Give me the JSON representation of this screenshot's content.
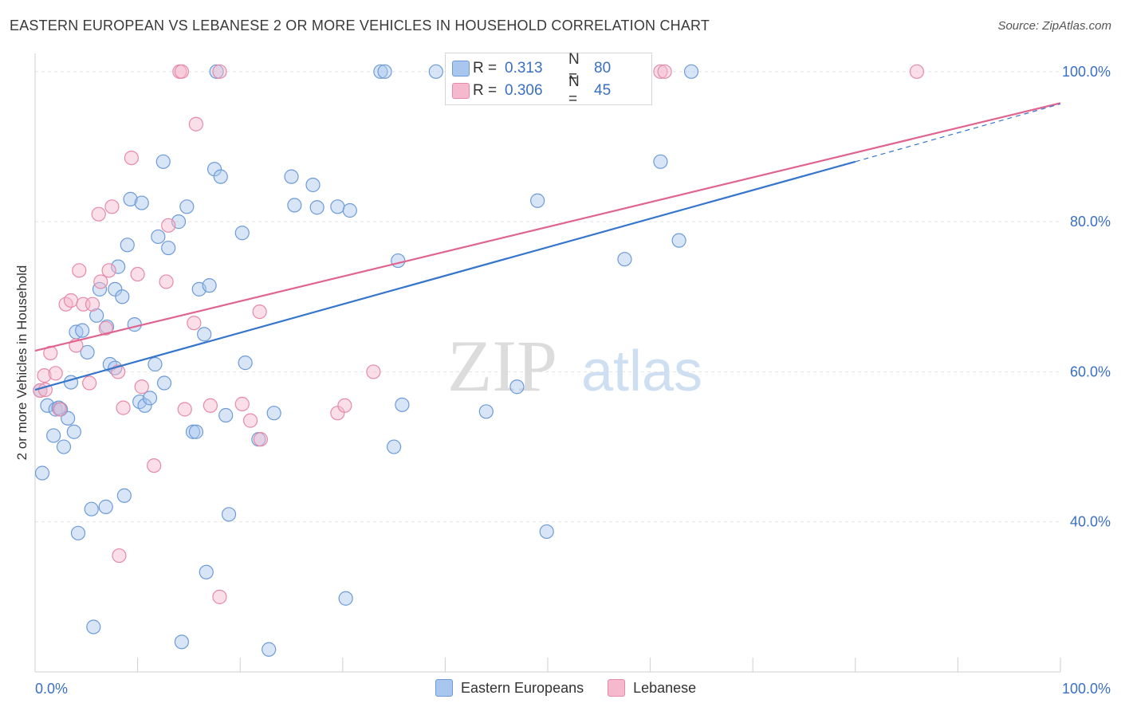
{
  "title": "EASTERN EUROPEAN VS LEBANESE 2 OR MORE VEHICLES IN HOUSEHOLD CORRELATION CHART",
  "source": "Source: ZipAtlas.com",
  "colors": {
    "blue_fill": "#a9c6ee",
    "blue_stroke": "#6d9bd8",
    "blue_line": "#3575cc",
    "pink_fill": "#f5b8cc",
    "pink_stroke": "#e68aa8",
    "pink_line": "#e0648f",
    "tick_text": "#3a6fc4",
    "grid": "#e3e3e3"
  },
  "legend_top": {
    "rows": [
      {
        "r_label": "R =",
        "r_value": "0.313",
        "n_label": "N =",
        "n_value": "80"
      },
      {
        "r_label": "R =",
        "r_value": "0.306",
        "n_label": "N =",
        "n_value": "45"
      }
    ]
  },
  "legend_bottom": {
    "items": [
      "Eastern Europeans",
      "Lebanese"
    ]
  },
  "watermark": {
    "part1": "ZIP",
    "part2": "atlas"
  },
  "chart_data": {
    "type": "scatter",
    "title": "EASTERN EUROPEAN VS LEBANESE 2 OR MORE VEHICLES IN HOUSEHOLD CORRELATION CHART",
    "xlabel": "",
    "ylabel": "2 or more Vehicles in Household",
    "xlim": [
      0,
      100
    ],
    "ylim": [
      20,
      102
    ],
    "x_tick_labels": [
      "0.0%",
      "100.0%"
    ],
    "y_ticks": [
      40,
      60,
      80,
      100
    ],
    "y_tick_labels": [
      "40.0%",
      "60.0%",
      "80.0%",
      "100.0%"
    ],
    "grid": true,
    "series": [
      {
        "name": "Eastern Europeans",
        "r": 0.313,
        "n": 80,
        "trend": {
          "x0": 0,
          "y0": 57.6,
          "x1": 80,
          "y1": 88.0,
          "dash_to_x": 100,
          "dash_to_y": 95.7
        },
        "points": [
          [
            0.5,
            57.5
          ],
          [
            0.7,
            46.5
          ],
          [
            1.2,
            55.5
          ],
          [
            1.8,
            51.5
          ],
          [
            2.0,
            55.0
          ],
          [
            2.3,
            55.2
          ],
          [
            2.5,
            55.0
          ],
          [
            2.8,
            50.0
          ],
          [
            3.2,
            53.8
          ],
          [
            3.5,
            58.6
          ],
          [
            3.8,
            52.0
          ],
          [
            4.0,
            65.3
          ],
          [
            4.2,
            38.5
          ],
          [
            4.6,
            65.5
          ],
          [
            5.1,
            62.6
          ],
          [
            5.5,
            41.7
          ],
          [
            5.7,
            26.0
          ],
          [
            6.0,
            67.5
          ],
          [
            6.3,
            71.0
          ],
          [
            6.9,
            42.0
          ],
          [
            7.0,
            66.0
          ],
          [
            7.3,
            61.0
          ],
          [
            7.8,
            60.5
          ],
          [
            7.8,
            71.0
          ],
          [
            8.1,
            74.0
          ],
          [
            8.5,
            70.0
          ],
          [
            8.7,
            43.5
          ],
          [
            9.0,
            76.9
          ],
          [
            9.3,
            83.0
          ],
          [
            9.7,
            66.3
          ],
          [
            10.2,
            56.0
          ],
          [
            10.4,
            82.5
          ],
          [
            10.7,
            55.5
          ],
          [
            11.2,
            56.5
          ],
          [
            11.7,
            61.0
          ],
          [
            12.0,
            78.0
          ],
          [
            12.5,
            88.0
          ],
          [
            12.6,
            58.5
          ],
          [
            13.0,
            76.5
          ],
          [
            14.0,
            80.0
          ],
          [
            14.3,
            24.0
          ],
          [
            14.8,
            82.0
          ],
          [
            15.4,
            52.0
          ],
          [
            15.7,
            52.0
          ],
          [
            16.0,
            71.0
          ],
          [
            16.5,
            65.0
          ],
          [
            16.7,
            33.3
          ],
          [
            17.0,
            71.5
          ],
          [
            17.5,
            87.0
          ],
          [
            17.7,
            100.0
          ],
          [
            18.1,
            86.0
          ],
          [
            18.6,
            54.2
          ],
          [
            18.9,
            41.0
          ],
          [
            20.2,
            78.5
          ],
          [
            20.5,
            61.2
          ],
          [
            21.8,
            51.0
          ],
          [
            22.8,
            23.0
          ],
          [
            23.3,
            54.5
          ],
          [
            25.0,
            86.0
          ],
          [
            25.3,
            82.2
          ],
          [
            27.1,
            84.9
          ],
          [
            27.5,
            81.9
          ],
          [
            29.5,
            82.0
          ],
          [
            30.3,
            29.8
          ],
          [
            30.7,
            81.5
          ],
          [
            33.7,
            100.0
          ],
          [
            34.1,
            100.0
          ],
          [
            35.0,
            50.0
          ],
          [
            35.4,
            74.8
          ],
          [
            35.8,
            55.6
          ],
          [
            39.1,
            100.0
          ],
          [
            44.0,
            54.7
          ],
          [
            47.0,
            58.0
          ],
          [
            49.0,
            82.8
          ],
          [
            49.9,
            38.7
          ],
          [
            57.0,
            100.0
          ],
          [
            57.5,
            75.0
          ],
          [
            61.0,
            88.0
          ],
          [
            62.8,
            77.5
          ],
          [
            64.0,
            100.0
          ]
        ]
      },
      {
        "name": "Lebanese",
        "r": 0.306,
        "n": 45,
        "trend": {
          "x0": 0,
          "y0": 62.8,
          "x1": 100,
          "y1": 95.8
        },
        "points": [
          [
            0.5,
            57.5
          ],
          [
            0.9,
            59.5
          ],
          [
            1.5,
            62.5
          ],
          [
            2.0,
            59.8
          ],
          [
            2.4,
            55.0
          ],
          [
            3.0,
            69.0
          ],
          [
            3.5,
            69.5
          ],
          [
            4.0,
            63.5
          ],
          [
            4.3,
            73.5
          ],
          [
            4.7,
            69.0
          ],
          [
            5.3,
            58.5
          ],
          [
            5.6,
            69.0
          ],
          [
            6.2,
            81.0
          ],
          [
            6.4,
            72.0
          ],
          [
            6.9,
            65.8
          ],
          [
            7.2,
            73.5
          ],
          [
            7.5,
            82.0
          ],
          [
            8.1,
            60.0
          ],
          [
            8.6,
            55.2
          ],
          [
            8.2,
            35.5
          ],
          [
            9.4,
            88.5
          ],
          [
            10.0,
            73.0
          ],
          [
            10.4,
            58.0
          ],
          [
            11.6,
            47.5
          ],
          [
            12.8,
            72.0
          ],
          [
            13.0,
            79.5
          ],
          [
            14.1,
            100.0
          ],
          [
            14.3,
            100.0
          ],
          [
            14.6,
            55.0
          ],
          [
            15.5,
            66.5
          ],
          [
            15.7,
            93.0
          ],
          [
            17.1,
            55.5
          ],
          [
            18.0,
            100.0
          ],
          [
            18.0,
            30.0
          ],
          [
            20.2,
            55.7
          ],
          [
            21.0,
            53.5
          ],
          [
            21.9,
            68.0
          ],
          [
            22.0,
            51.0
          ],
          [
            29.5,
            54.5
          ],
          [
            30.2,
            55.5
          ],
          [
            33.0,
            60.0
          ],
          [
            61.0,
            100.0
          ],
          [
            61.4,
            100.0
          ],
          [
            86.0,
            100.0
          ],
          [
            1.0,
            57.6
          ]
        ]
      }
    ]
  }
}
